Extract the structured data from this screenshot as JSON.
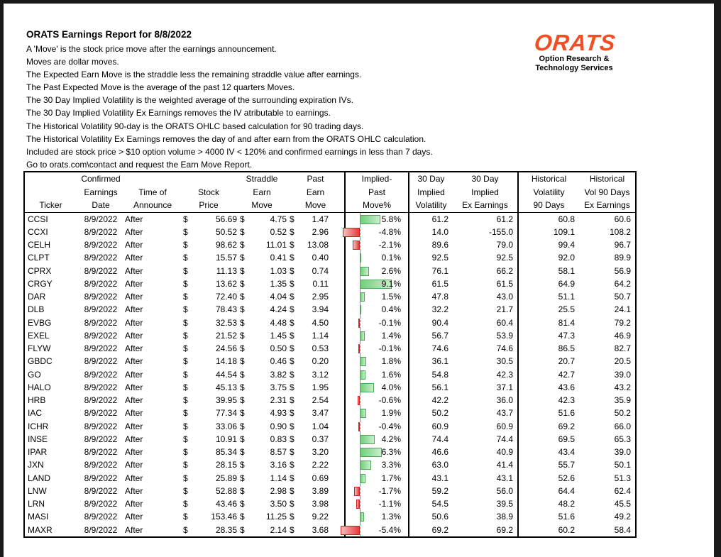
{
  "title": "ORATS Earnings Report for 8/8/2022",
  "description": [
    "A 'Move' is the stock price move after the earnings announcement.",
    "Moves are dollar moves.",
    "The Expected Earn Move is the straddle less the remaining straddle value after earnings.",
    "The Past Expected Move is the average of the past 12 quarters Moves.",
    "The 30 Day Implied Volatility is the weighted average of the surrounding expiration IVs.",
    "The 30 Day Implied Volatility Ex Earnings removes the IV atributable to earnings.",
    "The Historical Volatility 90-day is the ORATS OHLC based calculation for 90 trading days.",
    "The Historical Volatility Ex Earnings removes the day of and after earn from the ORATS OHLC calculation.",
    "Included are stock price > $10 option volume > 4000 IV < 120% and confirmed earnings in less than 7 days.",
    "Go to orats.com\\contact and request the Earn Move Report."
  ],
  "logo": {
    "mark": "ORATS",
    "line1": "Option Research &",
    "line2": "Technology Services",
    "color": "#f04e23"
  },
  "headers": {
    "ticker": [
      "",
      "",
      "Ticker"
    ],
    "date": [
      "Confirmed",
      "Earnings",
      "Date"
    ],
    "time": [
      "",
      "Time of",
      "Announce"
    ],
    "price": [
      "",
      "Stock",
      "Price"
    ],
    "straddle": [
      "Straddle",
      "Earn",
      "Move"
    ],
    "past": [
      "Past",
      "Earn",
      "Move"
    ],
    "implied": [
      "Implied-",
      "Past",
      "Move%"
    ],
    "iv30": [
      "30 Day",
      "Implied",
      "Volatility"
    ],
    "iv30ex": [
      "30 Day",
      "Implied",
      "Ex Earnings"
    ],
    "hv90": [
      "Historical",
      "Volatility",
      "90 Days"
    ],
    "hv90ex": [
      "Historical",
      "Vol 90 Days",
      "Ex Earnings"
    ]
  },
  "currency": "$",
  "rows": [
    {
      "ticker": "CCSI",
      "date": "8/9/2022",
      "time": "After",
      "price": "56.69",
      "straddle": "4.75",
      "past": "1.47",
      "implied": "5.8%",
      "implied_value": 5.8,
      "iv30": "61.2",
      "iv30ex": "61.2",
      "hv90": "60.8",
      "hv90ex": "60.6"
    },
    {
      "ticker": "CCXI",
      "date": "8/9/2022",
      "time": "After",
      "price": "50.52",
      "straddle": "0.52",
      "past": "2.96",
      "implied": "-4.8%",
      "implied_value": -4.8,
      "iv30": "14.0",
      "iv30ex": "-155.0",
      "hv90": "109.1",
      "hv90ex": "108.2"
    },
    {
      "ticker": "CELH",
      "date": "8/9/2022",
      "time": "After",
      "price": "98.62",
      "straddle": "11.01",
      "past": "13.08",
      "implied": "-2.1%",
      "implied_value": -2.1,
      "iv30": "89.6",
      "iv30ex": "79.0",
      "hv90": "99.4",
      "hv90ex": "96.7"
    },
    {
      "ticker": "CLPT",
      "date": "8/9/2022",
      "time": "After",
      "price": "15.57",
      "straddle": "0.41",
      "past": "0.40",
      "implied": "0.1%",
      "implied_value": 0.1,
      "iv30": "92.5",
      "iv30ex": "92.5",
      "hv90": "92.0",
      "hv90ex": "89.9"
    },
    {
      "ticker": "CPRX",
      "date": "8/9/2022",
      "time": "After",
      "price": "11.13",
      "straddle": "1.03",
      "past": "0.74",
      "implied": "2.6%",
      "implied_value": 2.6,
      "iv30": "76.1",
      "iv30ex": "66.2",
      "hv90": "58.1",
      "hv90ex": "56.9"
    },
    {
      "ticker": "CRGY",
      "date": "8/9/2022",
      "time": "After",
      "price": "13.62",
      "straddle": "1.35",
      "past": "0.11",
      "implied": "9.1%",
      "implied_value": 9.1,
      "iv30": "61.5",
      "iv30ex": "61.5",
      "hv90": "64.9",
      "hv90ex": "64.2"
    },
    {
      "ticker": "DAR",
      "date": "8/9/2022",
      "time": "After",
      "price": "72.40",
      "straddle": "4.04",
      "past": "2.95",
      "implied": "1.5%",
      "implied_value": 1.5,
      "iv30": "47.8",
      "iv30ex": "43.0",
      "hv90": "51.1",
      "hv90ex": "50.7"
    },
    {
      "ticker": "DLB",
      "date": "8/9/2022",
      "time": "After",
      "price": "78.43",
      "straddle": "4.24",
      "past": "3.94",
      "implied": "0.4%",
      "implied_value": 0.4,
      "iv30": "32.2",
      "iv30ex": "21.7",
      "hv90": "25.5",
      "hv90ex": "24.1"
    },
    {
      "ticker": "EVBG",
      "date": "8/9/2022",
      "time": "After",
      "price": "32.53",
      "straddle": "4.48",
      "past": "4.50",
      "implied": "-0.1%",
      "implied_value": -0.1,
      "iv30": "90.4",
      "iv30ex": "60.4",
      "hv90": "81.4",
      "hv90ex": "79.2"
    },
    {
      "ticker": "EXEL",
      "date": "8/9/2022",
      "time": "After",
      "price": "21.52",
      "straddle": "1.45",
      "past": "1.14",
      "implied": "1.4%",
      "implied_value": 1.4,
      "iv30": "56.7",
      "iv30ex": "53.9",
      "hv90": "47.3",
      "hv90ex": "46.9"
    },
    {
      "ticker": "FLYW",
      "date": "8/9/2022",
      "time": "After",
      "price": "24.56",
      "straddle": "0.50",
      "past": "0.53",
      "implied": "-0.1%",
      "implied_value": -0.1,
      "iv30": "74.6",
      "iv30ex": "74.6",
      "hv90": "86.5",
      "hv90ex": "82.7"
    },
    {
      "ticker": "GBDC",
      "date": "8/9/2022",
      "time": "After",
      "price": "14.18",
      "straddle": "0.46",
      "past": "0.20",
      "implied": "1.8%",
      "implied_value": 1.8,
      "iv30": "36.1",
      "iv30ex": "30.5",
      "hv90": "20.7",
      "hv90ex": "20.5"
    },
    {
      "ticker": "GO",
      "date": "8/9/2022",
      "time": "After",
      "price": "44.54",
      "straddle": "3.82",
      "past": "3.12",
      "implied": "1.6%",
      "implied_value": 1.6,
      "iv30": "54.8",
      "iv30ex": "42.3",
      "hv90": "42.7",
      "hv90ex": "39.0"
    },
    {
      "ticker": "HALO",
      "date": "8/9/2022",
      "time": "After",
      "price": "45.13",
      "straddle": "3.75",
      "past": "1.95",
      "implied": "4.0%",
      "implied_value": 4.0,
      "iv30": "56.1",
      "iv30ex": "37.1",
      "hv90": "43.6",
      "hv90ex": "43.2"
    },
    {
      "ticker": "HRB",
      "date": "8/9/2022",
      "time": "After",
      "price": "39.95",
      "straddle": "2.31",
      "past": "2.54",
      "implied": "-0.6%",
      "implied_value": -0.6,
      "iv30": "42.2",
      "iv30ex": "36.0",
      "hv90": "42.3",
      "hv90ex": "35.9"
    },
    {
      "ticker": "IAC",
      "date": "8/9/2022",
      "time": "After",
      "price": "77.34",
      "straddle": "4.93",
      "past": "3.47",
      "implied": "1.9%",
      "implied_value": 1.9,
      "iv30": "50.2",
      "iv30ex": "43.7",
      "hv90": "51.6",
      "hv90ex": "50.2"
    },
    {
      "ticker": "ICHR",
      "date": "8/9/2022",
      "time": "After",
      "price": "33.06",
      "straddle": "0.90",
      "past": "1.04",
      "implied": "-0.4%",
      "implied_value": -0.4,
      "iv30": "60.9",
      "iv30ex": "60.9",
      "hv90": "69.2",
      "hv90ex": "66.0"
    },
    {
      "ticker": "INSE",
      "date": "8/9/2022",
      "time": "After",
      "price": "10.91",
      "straddle": "0.83",
      "past": "0.37",
      "implied": "4.2%",
      "implied_value": 4.2,
      "iv30": "74.4",
      "iv30ex": "74.4",
      "hv90": "69.5",
      "hv90ex": "65.3"
    },
    {
      "ticker": "IPAR",
      "date": "8/9/2022",
      "time": "After",
      "price": "85.34",
      "straddle": "8.57",
      "past": "3.20",
      "implied": "6.3%",
      "implied_value": 6.3,
      "iv30": "46.6",
      "iv30ex": "40.9",
      "hv90": "43.4",
      "hv90ex": "39.0"
    },
    {
      "ticker": "JXN",
      "date": "8/9/2022",
      "time": "After",
      "price": "28.15",
      "straddle": "3.16",
      "past": "2.22",
      "implied": "3.3%",
      "implied_value": 3.3,
      "iv30": "63.0",
      "iv30ex": "41.4",
      "hv90": "55.7",
      "hv90ex": "50.1"
    },
    {
      "ticker": "LAND",
      "date": "8/9/2022",
      "time": "After",
      "price": "25.89",
      "straddle": "1.14",
      "past": "0.69",
      "implied": "1.7%",
      "implied_value": 1.7,
      "iv30": "43.1",
      "iv30ex": "43.1",
      "hv90": "52.6",
      "hv90ex": "51.3"
    },
    {
      "ticker": "LNW",
      "date": "8/9/2022",
      "time": "After",
      "price": "52.88",
      "straddle": "2.98",
      "past": "3.89",
      "implied": "-1.7%",
      "implied_value": -1.7,
      "iv30": "59.2",
      "iv30ex": "56.0",
      "hv90": "64.4",
      "hv90ex": "62.4"
    },
    {
      "ticker": "LRN",
      "date": "8/9/2022",
      "time": "After",
      "price": "43.46",
      "straddle": "3.50",
      "past": "3.98",
      "implied": "-1.1%",
      "implied_value": -1.1,
      "iv30": "54.5",
      "iv30ex": "39.5",
      "hv90": "48.2",
      "hv90ex": "45.5"
    },
    {
      "ticker": "MASI",
      "date": "8/9/2022",
      "time": "After",
      "price": "153.46",
      "straddle": "11.25",
      "past": "9.22",
      "implied": "1.3%",
      "implied_value": 1.3,
      "iv30": "50.6",
      "iv30ex": "38.9",
      "hv90": "51.6",
      "hv90ex": "49.2"
    },
    {
      "ticker": "MAXR",
      "date": "8/9/2022",
      "time": "After",
      "price": "28.35",
      "straddle": "2.14",
      "past": "3.68",
      "implied": "-5.4%",
      "implied_value": -5.4,
      "iv30": "69.2",
      "iv30ex": "69.2",
      "hv90": "60.2",
      "hv90ex": "58.4"
    }
  ]
}
